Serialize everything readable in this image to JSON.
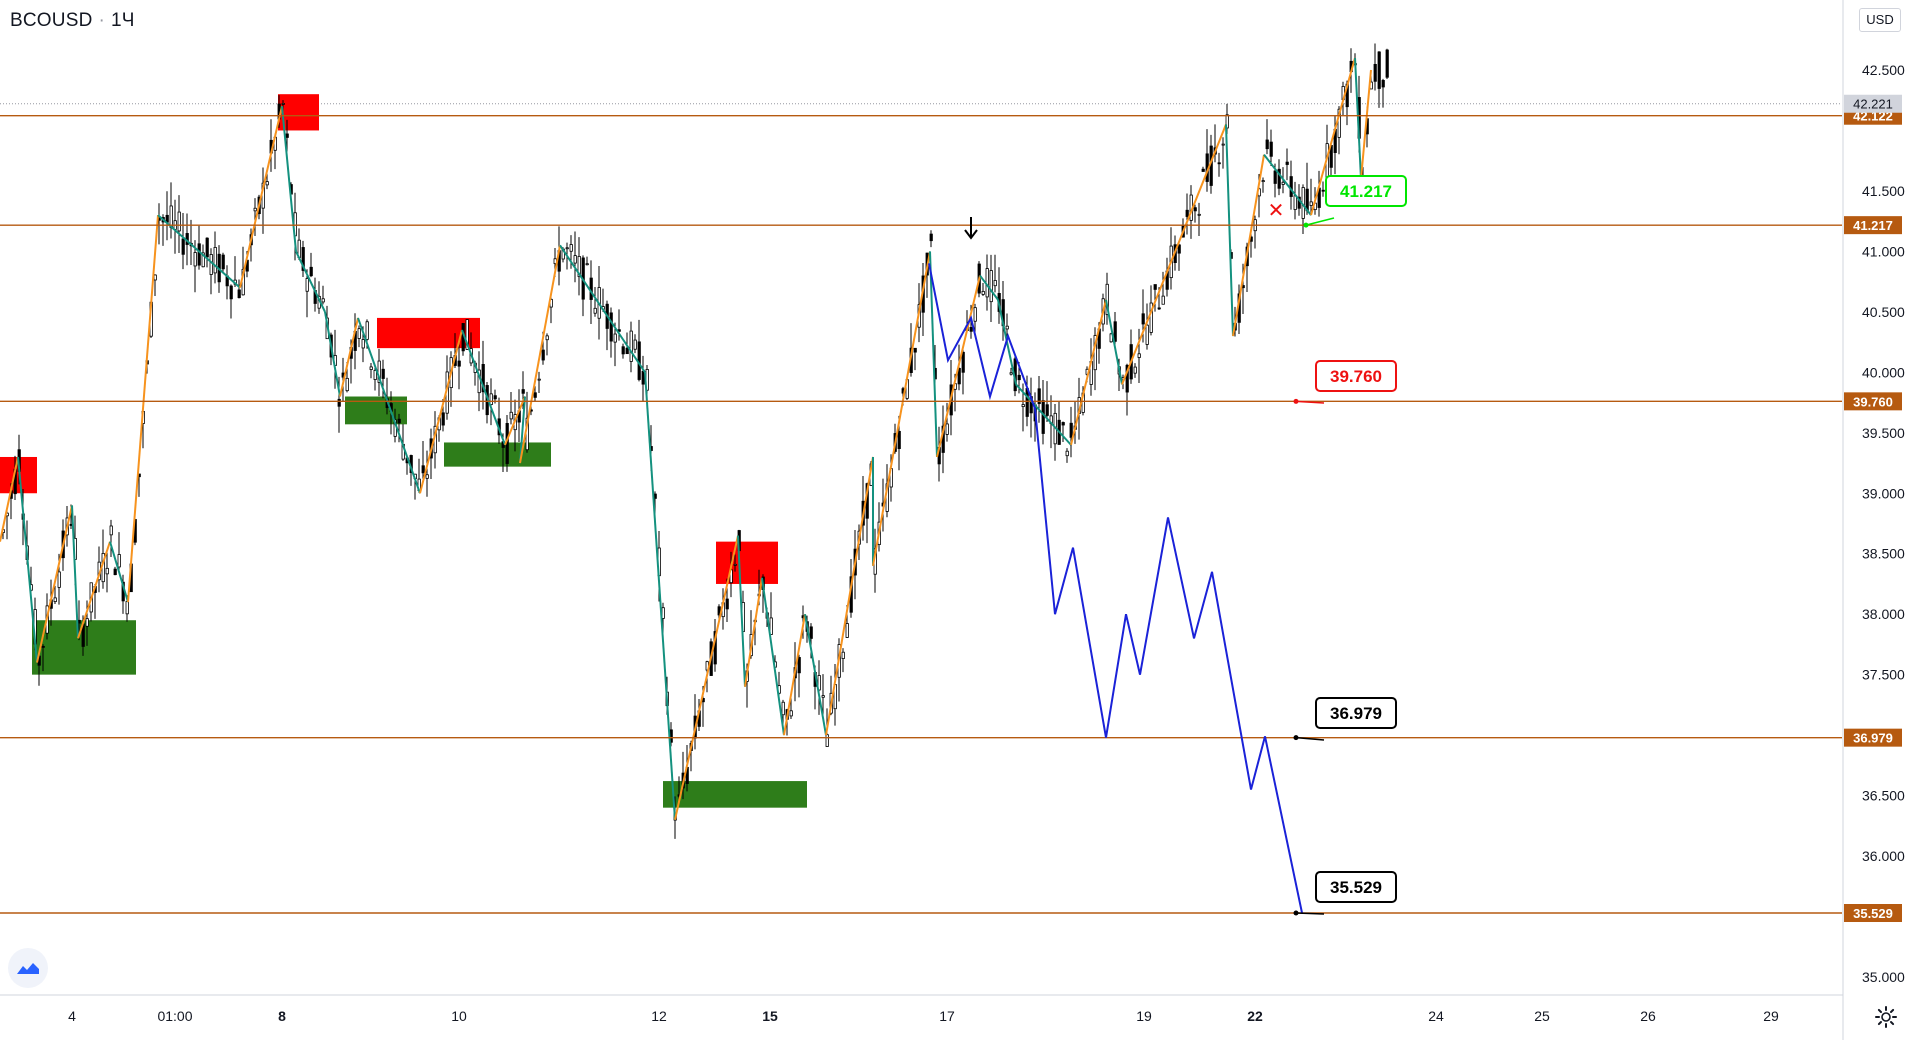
{
  "symbol": "BCOUSD",
  "interval": "1Ч",
  "currency": "USD",
  "price_axis_ticks": [
    "42.500",
    "41.500",
    "41.000",
    "40.500",
    "40.000",
    "39.500",
    "39.000",
    "38.500",
    "38.000",
    "37.500",
    "36.500",
    "36.000",
    "35.000"
  ],
  "time_axis_ticks": [
    "4",
    "01:00",
    "8",
    "10",
    "12",
    "15",
    "17",
    "19",
    "22",
    "24",
    "25",
    "26",
    "29"
  ],
  "last_price": "42.221",
  "colors": {
    "level_line": "#b65a10",
    "level_tag": "#b65a10",
    "zigzag_up": "#f7931e",
    "zigzag_down": "#14917f",
    "projection": "#1a22d8",
    "supply_zone": "#ff0000",
    "demand_zone": "#2e7d1a",
    "candle": "#000000"
  },
  "chart_data": {
    "type": "candlestick",
    "title": "BCOUSD · 1Ч",
    "ylim": [
      34.8,
      43.0
    ],
    "horizontal_levels": [
      {
        "value": 42.122,
        "label": "42.122"
      },
      {
        "value": 41.217,
        "label": "41.217"
      },
      {
        "value": 39.76,
        "label": "39.760"
      },
      {
        "value": 36.979,
        "label": "36.979"
      },
      {
        "value": 35.529,
        "label": "35.529"
      }
    ],
    "callouts": [
      {
        "label": "41.217",
        "price": 41.217,
        "style": "green"
      },
      {
        "label": "39.760",
        "price": 39.76,
        "style": "red"
      },
      {
        "label": "36.979",
        "price": 36.979,
        "style": "black"
      },
      {
        "label": "35.529",
        "price": 35.529,
        "style": "black"
      }
    ],
    "projection_path_prices": [
      40.9,
      40.1,
      40.45,
      39.8,
      40.3,
      39.7,
      38.0,
      38.55,
      36.98,
      38.0,
      37.5,
      38.8,
      37.8,
      38.35,
      36.55,
      36.99,
      35.53
    ],
    "zigzag_prices": [
      38.6,
      39.3,
      37.6,
      38.9,
      37.8,
      38.6,
      38.1,
      41.3,
      40.7,
      42.2,
      41.0,
      40.5,
      39.8,
      40.45,
      39.0,
      40.35,
      39.4,
      39.8,
      39.25,
      41.05,
      40.0,
      36.3,
      38.65,
      37.4,
      38.3,
      37.0,
      38.0,
      37.0,
      39.3,
      38.4,
      41.0,
      39.3,
      40.8,
      40.6,
      39.9,
      39.4,
      40.6,
      39.9,
      42.05,
      40.3,
      41.8,
      41.3,
      42.6,
      41.6,
      42.5
    ],
    "zones": [
      {
        "kind": "supply",
        "low": 39.0,
        "high": 39.3
      },
      {
        "kind": "supply",
        "low": 42.0,
        "high": 42.3
      },
      {
        "kind": "supply",
        "low": 40.2,
        "high": 40.45
      },
      {
        "kind": "supply",
        "low": 38.25,
        "high": 38.6
      },
      {
        "kind": "demand",
        "low": 37.5,
        "high": 37.95
      },
      {
        "kind": "demand",
        "low": 39.57,
        "high": 39.8
      },
      {
        "kind": "demand",
        "low": 39.22,
        "high": 39.42
      },
      {
        "kind": "demand",
        "low": 36.4,
        "high": 36.62
      }
    ]
  }
}
